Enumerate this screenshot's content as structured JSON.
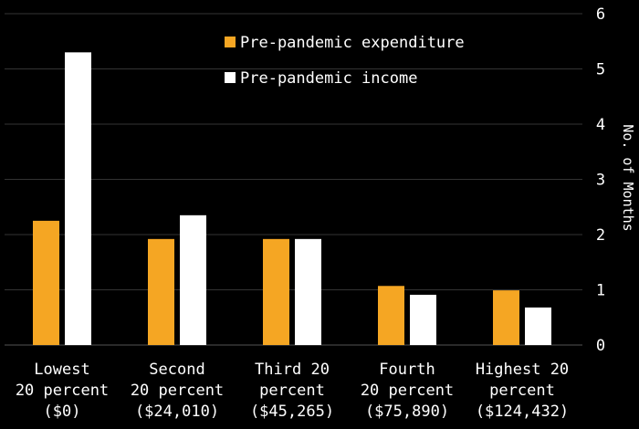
{
  "chart_data": {
    "type": "bar",
    "title": "",
    "xlabel": "",
    "ylabel": "No. of Months",
    "ylim": [
      0,
      6
    ],
    "yticks": [
      "0",
      "1",
      "2",
      "3",
      "4",
      "5",
      "6"
    ],
    "grid": true,
    "legend_position": "top-left",
    "categories": [
      [
        "Lowest",
        "20 percent",
        "($0)"
      ],
      [
        "Second",
        "20 percent",
        "($24,010)"
      ],
      [
        "Third 20",
        "percent",
        "($45,265)"
      ],
      [
        "Fourth",
        "20 percent",
        "($75,890)"
      ],
      [
        "Highest 20",
        "percent",
        "($124,432)"
      ]
    ],
    "series": [
      {
        "name": "Pre-pandemic expenditure",
        "color": "#f5a623",
        "values": [
          2.25,
          1.92,
          1.92,
          1.07,
          0.99
        ]
      },
      {
        "name": "Pre-pandemic income",
        "color": "#ffffff",
        "values": [
          5.3,
          2.35,
          1.92,
          0.91,
          0.68
        ]
      }
    ]
  },
  "colors": {
    "background": "#000000",
    "grid": "#444444",
    "text": "#ffffff"
  }
}
